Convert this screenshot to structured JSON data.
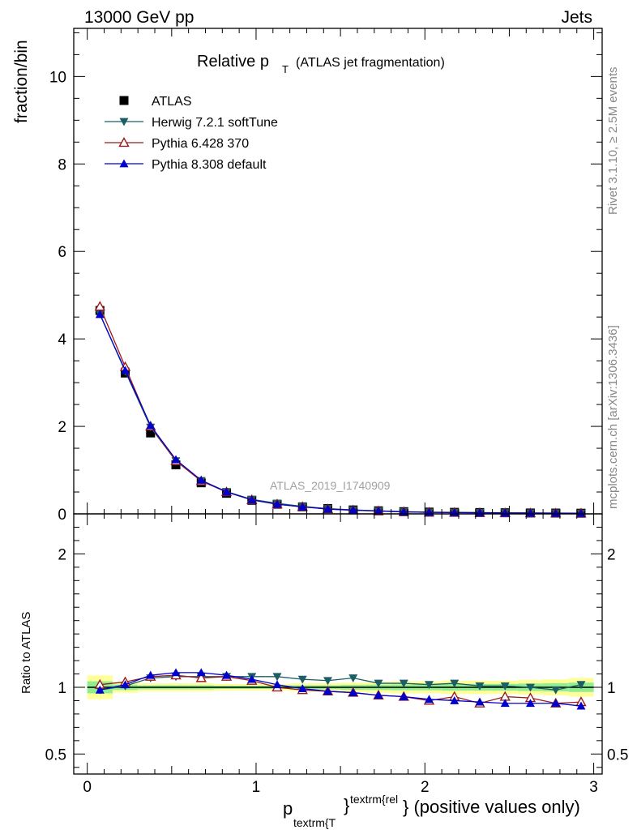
{
  "header": {
    "left": "13000 GeV pp",
    "right": "Jets"
  },
  "title": {
    "main": "Relative p",
    "main_sub": "T",
    "suffix": "(ATLAS jet fragmentation)"
  },
  "side_labels": {
    "rivet": "Rivet 3.1.10, ≥ 2.5M events",
    "mcplots": "mcplots.cern.ch [arXiv:1306.3436]"
  },
  "watermark": "ATLAS_2019_I1740909",
  "xlabel": {
    "p": "p",
    "sub": "textrm{T",
    "brace": "}",
    "sup": "textrm{rel",
    "rest": "} (positive values only)"
  },
  "legend": [
    {
      "key": "atlas",
      "label": "ATLAS",
      "color": "#000000",
      "marker": "square"
    },
    {
      "key": "herwig",
      "label": "Herwig 7.2.1 softTune",
      "color": "#1c5e63",
      "marker": "triangle-down"
    },
    {
      "key": "py6",
      "label": "Pythia 6.428 370",
      "color": "#9b1b1b",
      "marker": "triangle-up-open"
    },
    {
      "key": "py8",
      "label": "Pythia 8.308 default",
      "color": "#0000cc",
      "marker": "triangle-up"
    }
  ],
  "chart_data": [
    {
      "type": "line",
      "panel": "main",
      "ylabel": "fraction/bin",
      "xlim": [
        -0.08,
        3.05
      ],
      "ylim": [
        0,
        11.1
      ],
      "y_ticks": [
        0,
        2,
        4,
        6,
        8,
        10
      ],
      "x": [
        0.075,
        0.225,
        0.375,
        0.525,
        0.675,
        0.825,
        0.975,
        1.125,
        1.275,
        1.425,
        1.575,
        1.725,
        1.875,
        2.025,
        2.175,
        2.325,
        2.475,
        2.625,
        2.775,
        2.925
      ],
      "series": [
        {
          "name": "ATLAS",
          "values": [
            4.65,
            3.22,
            1.85,
            1.12,
            0.71,
            0.47,
            0.31,
            0.22,
            0.16,
            0.12,
            0.09,
            0.07,
            0.05,
            0.04,
            0.035,
            0.03,
            0.025,
            0.02,
            0.018,
            0.015
          ]
        },
        {
          "name": "Herwig 7.2.1 softTune",
          "values": [
            4.57,
            3.26,
            1.98,
            1.21,
            0.76,
            0.51,
            0.33,
            0.24,
            0.17,
            0.12,
            0.09,
            0.07,
            0.05,
            0.04,
            0.035,
            0.03,
            0.025,
            0.02,
            0.018,
            0.015
          ]
        },
        {
          "name": "Pythia 6.428 370",
          "values": [
            4.74,
            3.36,
            2.0,
            1.21,
            0.75,
            0.5,
            0.32,
            0.22,
            0.16,
            0.11,
            0.085,
            0.065,
            0.045,
            0.035,
            0.03,
            0.025,
            0.02,
            0.018,
            0.016,
            0.014
          ]
        },
        {
          "name": "Pythia 8.308 default",
          "values": [
            4.56,
            3.28,
            2.02,
            1.24,
            0.77,
            0.5,
            0.32,
            0.22,
            0.16,
            0.11,
            0.085,
            0.065,
            0.045,
            0.035,
            0.03,
            0.025,
            0.02,
            0.017,
            0.015,
            0.013
          ]
        }
      ]
    },
    {
      "type": "line",
      "panel": "ratio",
      "ylabel": "Ratio to ATLAS",
      "xlim": [
        -0.08,
        3.05
      ],
      "ylim": [
        0.35,
        2.3
      ],
      "y_ticks": [
        0.5,
        1,
        2
      ],
      "x_ticks": [
        0,
        1,
        2,
        3
      ],
      "x": [
        0.075,
        0.225,
        0.375,
        0.525,
        0.675,
        0.825,
        0.975,
        1.125,
        1.275,
        1.425,
        1.575,
        1.725,
        1.875,
        2.025,
        2.175,
        2.325,
        2.475,
        2.625,
        2.775,
        2.925
      ],
      "bands": {
        "x_edges": [
          0,
          0.15,
          0.3,
          0.45,
          0.6,
          0.75,
          0.9,
          1.05,
          1.2,
          1.35,
          1.5,
          1.65,
          1.8,
          1.95,
          2.1,
          2.25,
          2.4,
          2.55,
          2.7,
          2.85,
          3.0
        ],
        "yellow_halfwidth": [
          0.09,
          0.04,
          0.03,
          0.03,
          0.03,
          0.025,
          0.025,
          0.025,
          0.03,
          0.03,
          0.035,
          0.04,
          0.045,
          0.045,
          0.05,
          0.05,
          0.05,
          0.055,
          0.06,
          0.07
        ],
        "green_halfwidth": [
          0.045,
          0.02,
          0.015,
          0.015,
          0.015,
          0.012,
          0.012,
          0.012,
          0.015,
          0.015,
          0.018,
          0.02,
          0.022,
          0.022,
          0.025,
          0.025,
          0.025,
          0.028,
          0.03,
          0.035
        ]
      },
      "series": [
        {
          "name": "Herwig 7.2.1 softTune",
          "values": [
            0.98,
            1.01,
            1.07,
            1.08,
            1.08,
            1.08,
            1.08,
            1.08,
            1.06,
            1.05,
            1.07,
            1.03,
            1.03,
            1.02,
            1.03,
            1.01,
            1.01,
            1.0,
            0.98,
            1.02
          ]
        },
        {
          "name": "Pythia 6.428 370",
          "values": [
            1.02,
            1.04,
            1.08,
            1.09,
            1.07,
            1.08,
            1.05,
            1.0,
            0.98,
            0.97,
            0.96,
            0.94,
            0.93,
            0.9,
            0.93,
            0.88,
            0.93,
            0.92,
            0.88,
            0.89
          ]
        },
        {
          "name": "Pythia 8.308 default",
          "values": [
            0.98,
            1.02,
            1.09,
            1.11,
            1.11,
            1.09,
            1.06,
            1.02,
            0.99,
            0.97,
            0.96,
            0.94,
            0.93,
            0.91,
            0.9,
            0.89,
            0.88,
            0.88,
            0.88,
            0.86
          ]
        }
      ]
    }
  ]
}
